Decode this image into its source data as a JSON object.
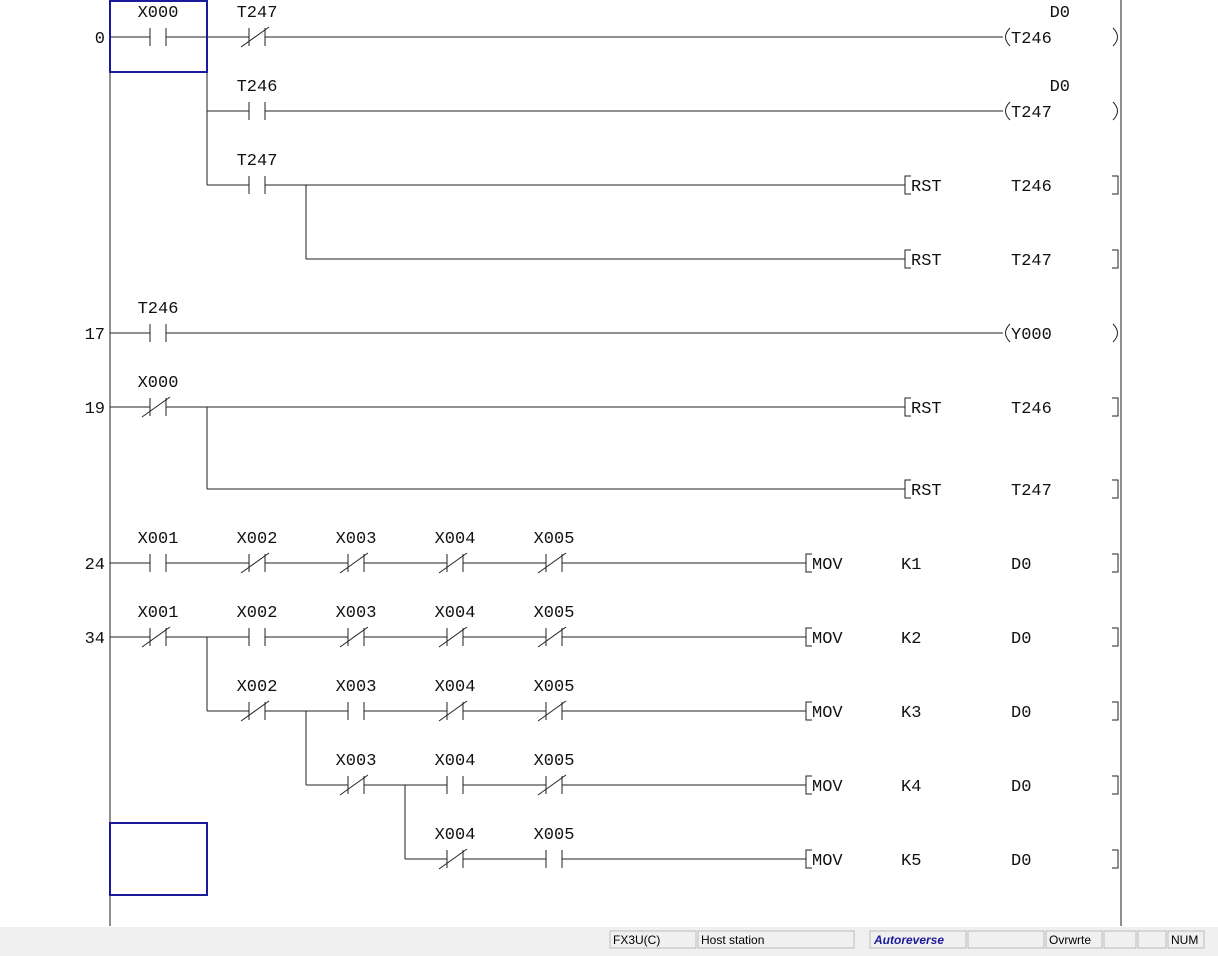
{
  "ladder": {
    "rows": [
      {
        "step": "0",
        "contacts": [
          {
            "label": "X000",
            "type": "no"
          },
          {
            "label": "T247",
            "type": "nc"
          }
        ],
        "output": {
          "type": "coil",
          "device": "T246",
          "setting": "D0"
        }
      },
      {
        "contacts": [
          {
            "label": "T246",
            "type": "no"
          }
        ],
        "output": {
          "type": "coil",
          "device": "T247",
          "setting": "D0"
        }
      },
      {
        "contacts": [
          {
            "label": "T247",
            "type": "no"
          }
        ],
        "output": {
          "type": "instruction",
          "name": "RST",
          "operands": [
            "T246"
          ]
        }
      },
      {
        "contacts": [],
        "output": {
          "type": "instruction",
          "name": "RST",
          "operands": [
            "T247"
          ]
        }
      },
      {
        "step": "17",
        "contacts": [
          {
            "label": "T246",
            "type": "no"
          }
        ],
        "output": {
          "type": "coil",
          "device": "Y000"
        }
      },
      {
        "step": "19",
        "contacts": [
          {
            "label": "X000",
            "type": "nc"
          }
        ],
        "output": {
          "type": "instruction",
          "name": "RST",
          "operands": [
            "T246"
          ]
        }
      },
      {
        "contacts": [],
        "output": {
          "type": "instruction",
          "name": "RST",
          "operands": [
            "T247"
          ]
        }
      },
      {
        "step": "24",
        "contacts": [
          {
            "label": "X001",
            "type": "no"
          },
          {
            "label": "X002",
            "type": "nc"
          },
          {
            "label": "X003",
            "type": "nc"
          },
          {
            "label": "X004",
            "type": "nc"
          },
          {
            "label": "X005",
            "type": "nc"
          }
        ],
        "output": {
          "type": "instruction",
          "name": "MOV",
          "operands": [
            "K1",
            "D0"
          ]
        }
      },
      {
        "step": "34",
        "contacts": [
          {
            "label": "X001",
            "type": "nc"
          },
          {
            "label": "X002",
            "type": "no"
          },
          {
            "label": "X003",
            "type": "nc"
          },
          {
            "label": "X004",
            "type": "nc"
          },
          {
            "label": "X005",
            "type": "nc"
          }
        ],
        "output": {
          "type": "instruction",
          "name": "MOV",
          "operands": [
            "K2",
            "D0"
          ]
        }
      },
      {
        "contacts": [
          {
            "label": "X002",
            "type": "nc"
          },
          {
            "label": "X003",
            "type": "no"
          },
          {
            "label": "X004",
            "type": "nc"
          },
          {
            "label": "X005",
            "type": "nc"
          }
        ],
        "output": {
          "type": "instruction",
          "name": "MOV",
          "operands": [
            "K3",
            "D0"
          ]
        }
      },
      {
        "contacts": [
          {
            "label": "X003",
            "type": "nc"
          },
          {
            "label": "X004",
            "type": "no"
          },
          {
            "label": "X005",
            "type": "nc"
          }
        ],
        "output": {
          "type": "instruction",
          "name": "MOV",
          "operands": [
            "K4",
            "D0"
          ]
        }
      },
      {
        "contacts": [
          {
            "label": "X004",
            "type": "nc"
          },
          {
            "label": "X005",
            "type": "no"
          }
        ],
        "output": {
          "type": "instruction",
          "name": "MOV",
          "operands": [
            "K5",
            "D0"
          ]
        }
      }
    ]
  },
  "status_bar": {
    "plc": "FX3U(C)",
    "station": "Host station",
    "mode": "Autoreverse",
    "overwrite": "Ovrwrte",
    "num": "NUM"
  }
}
